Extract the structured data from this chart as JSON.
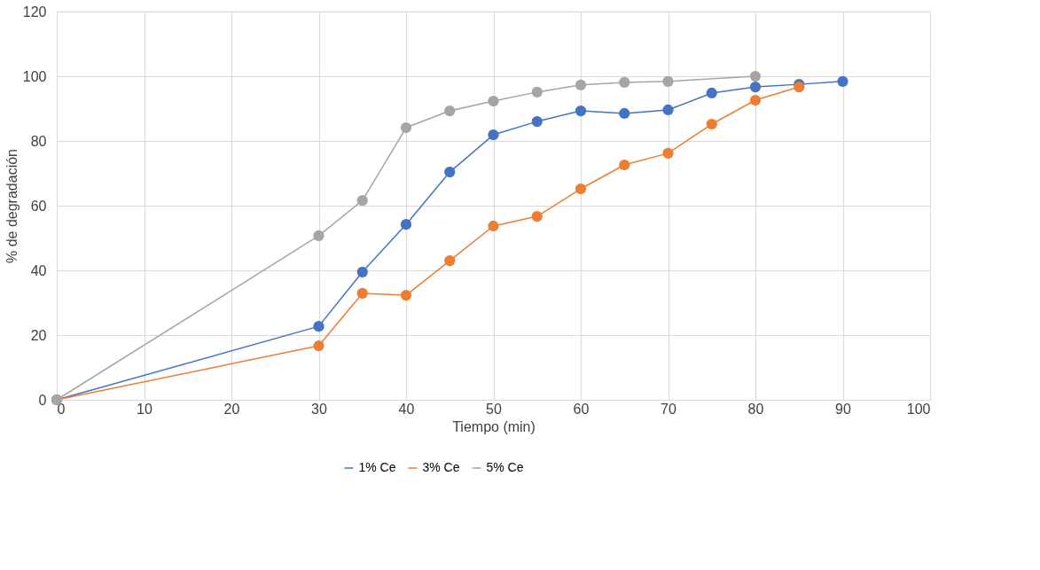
{
  "chart_data": {
    "type": "line",
    "xlabel": "Tiempo (min)",
    "ylabel": "% de degradación",
    "xlim": [
      0,
      100
    ],
    "xticks": [
      0,
      10,
      20,
      30,
      40,
      50,
      60,
      70,
      80,
      90,
      100
    ],
    "ylim": [
      0,
      120
    ],
    "yticks": [
      0,
      20,
      40,
      60,
      80,
      100,
      120
    ],
    "grid": true,
    "legend": "bottom",
    "marker": "circle",
    "line_style": "solid",
    "series": [
      {
        "name": "1% Ce",
        "color": "#4472c4",
        "x": [
          0,
          30,
          35,
          40,
          45,
          50,
          55,
          60,
          65,
          70,
          75,
          80,
          85,
          90
        ],
        "values": [
          0,
          22.7,
          39.5,
          54.2,
          70.4,
          81.9,
          86.0,
          89.3,
          88.5,
          89.6,
          94.8,
          96.7,
          97.5,
          98.4
        ]
      },
      {
        "name": "3% Ce",
        "color": "#ed7d31",
        "x": [
          0,
          30,
          35,
          40,
          45,
          50,
          55,
          60,
          65,
          70,
          75,
          80,
          85
        ],
        "values": [
          0,
          16.7,
          32.9,
          32.3,
          43.0,
          53.7,
          56.7,
          65.2,
          72.6,
          76.2,
          85.2,
          92.6,
          96.7
        ]
      },
      {
        "name": "5% Ce",
        "color": "#a5a5a5",
        "x": [
          0,
          30,
          35,
          40,
          45,
          50,
          55,
          60,
          65,
          70,
          80
        ],
        "values": [
          0,
          50.7,
          61.6,
          84.1,
          89.3,
          92.3,
          95.1,
          97.3,
          98.1,
          98.4,
          100
        ]
      }
    ]
  }
}
